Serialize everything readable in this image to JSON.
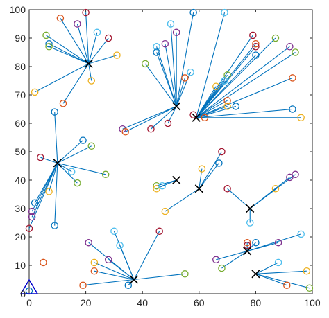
{
  "chart_data": {
    "type": "scatter",
    "title": "",
    "xlabel": "",
    "ylabel": "",
    "xlim": [
      0,
      100
    ],
    "ylim": [
      0,
      100
    ],
    "xticks": [
      0,
      20,
      40,
      60,
      80,
      100
    ],
    "yticks": [
      0,
      10,
      20,
      30,
      40,
      50,
      60,
      70,
      80,
      90,
      100
    ],
    "grid": false,
    "legend": "none",
    "colors": {
      "link": "#0072BD",
      "hub": "#000000",
      "base_station": "#0000CC",
      "node_palette": [
        "#0072BD",
        "#D95319",
        "#EDB120",
        "#7E2F8E",
        "#77AC30",
        "#4DBEEE",
        "#A2142F"
      ]
    },
    "base_station": {
      "x": 0,
      "y": 0,
      "marker": "triangle"
    },
    "clusters": [
      {
        "head": [
          21,
          81
        ],
        "members": [
          {
            "x": 11,
            "y": 97,
            "c": 1
          },
          {
            "x": 20,
            "y": 99,
            "c": 6
          },
          {
            "x": 17,
            "y": 95,
            "c": 3
          },
          {
            "x": 24,
            "y": 92,
            "c": 5
          },
          {
            "x": 28,
            "y": 90,
            "c": 6
          },
          {
            "x": 6,
            "y": 91,
            "c": 4
          },
          {
            "x": 7,
            "y": 88,
            "c": 0
          },
          {
            "x": 7,
            "y": 87,
            "c": 4
          },
          {
            "x": 31,
            "y": 84,
            "c": 2
          },
          {
            "x": 22,
            "y": 75,
            "c": 2
          },
          {
            "x": 12,
            "y": 67,
            "c": 1
          },
          {
            "x": 2,
            "y": 71,
            "c": 2
          }
        ]
      },
      {
        "head": [
          52,
          66
        ],
        "members": [
          {
            "x": 58,
            "y": 99,
            "c": 0
          },
          {
            "x": 50,
            "y": 95,
            "c": 5
          },
          {
            "x": 52,
            "y": 92,
            "c": 3
          },
          {
            "x": 48,
            "y": 88,
            "c": 3
          },
          {
            "x": 45,
            "y": 87,
            "c": 5
          },
          {
            "x": 45,
            "y": 85,
            "c": 0
          },
          {
            "x": 41,
            "y": 81,
            "c": 4
          },
          {
            "x": 57,
            "y": 78,
            "c": 5
          },
          {
            "x": 55,
            "y": 76,
            "c": 1
          },
          {
            "x": 33,
            "y": 58,
            "c": 3
          },
          {
            "x": 34,
            "y": 57,
            "c": 1
          },
          {
            "x": 43,
            "y": 58,
            "c": 6
          },
          {
            "x": 49,
            "y": 60,
            "c": 6
          }
        ]
      },
      {
        "head": [
          59,
          62
        ],
        "members": [
          {
            "x": 69,
            "y": 99,
            "c": 5
          },
          {
            "x": 79,
            "y": 91,
            "c": 6
          },
          {
            "x": 80,
            "y": 88,
            "c": 1
          },
          {
            "x": 80,
            "y": 87,
            "c": 6
          },
          {
            "x": 87,
            "y": 90,
            "c": 4
          },
          {
            "x": 92,
            "y": 87,
            "c": 3
          },
          {
            "x": 94,
            "y": 85,
            "c": 4
          },
          {
            "x": 80,
            "y": 84,
            "c": 0
          },
          {
            "x": 70,
            "y": 77,
            "c": 4
          },
          {
            "x": 69,
            "y": 75,
            "c": 5
          },
          {
            "x": 93,
            "y": 76,
            "c": 1
          },
          {
            "x": 66,
            "y": 73,
            "c": 2
          },
          {
            "x": 70,
            "y": 68,
            "c": 1
          },
          {
            "x": 70,
            "y": 66,
            "c": 2
          },
          {
            "x": 73,
            "y": 66,
            "c": 0
          },
          {
            "x": 93,
            "y": 65,
            "c": 0
          },
          {
            "x": 96,
            "y": 62,
            "c": 2
          },
          {
            "x": 62,
            "y": 62,
            "c": 1
          },
          {
            "x": 58,
            "y": 63,
            "c": 6
          }
        ]
      },
      {
        "head": [
          10,
          46
        ],
        "members": [
          {
            "x": 9,
            "y": 64,
            "c": 0
          },
          {
            "x": 19,
            "y": 54,
            "c": 0
          },
          {
            "x": 22,
            "y": 52,
            "c": 4
          },
          {
            "x": 4,
            "y": 48,
            "c": 6
          },
          {
            "x": 15,
            "y": 43,
            "c": 5
          },
          {
            "x": 27,
            "y": 42,
            "c": 4
          },
          {
            "x": 17,
            "y": 39,
            "c": 4
          },
          {
            "x": 7,
            "y": 36,
            "c": 2
          },
          {
            "x": 2,
            "y": 32,
            "c": 0
          },
          {
            "x": 1,
            "y": 29,
            "c": 3
          },
          {
            "x": 1,
            "y": 27,
            "c": 3
          },
          {
            "x": 0,
            "y": 23,
            "c": 6
          },
          {
            "x": 9,
            "y": 24,
            "c": 0
          }
        ]
      },
      {
        "head": [
          52,
          40
        ],
        "members": [
          {
            "x": 45,
            "y": 38,
            "c": 4
          },
          {
            "x": 45,
            "y": 37,
            "c": 2
          },
          {
            "x": 47,
            "y": 38,
            "c": 5
          }
        ]
      },
      {
        "head": [
          60,
          37
        ],
        "members": [
          {
            "x": 61,
            "y": 44,
            "c": 2
          },
          {
            "x": 67,
            "y": 46,
            "c": 0
          },
          {
            "x": 68,
            "y": 50,
            "c": 6
          },
          {
            "x": 48,
            "y": 29,
            "c": 2
          }
        ]
      },
      {
        "head": [
          78,
          30
        ],
        "members": [
          {
            "x": 70,
            "y": 37,
            "c": 6
          },
          {
            "x": 87,
            "y": 37,
            "c": 2
          },
          {
            "x": 92,
            "y": 41,
            "c": 3
          },
          {
            "x": 94,
            "y": 42,
            "c": 3
          },
          {
            "x": 78,
            "y": 25,
            "c": 5
          }
        ]
      },
      {
        "head": [
          37,
          5
        ],
        "members": [
          {
            "x": 30,
            "y": 22,
            "c": 5
          },
          {
            "x": 46,
            "y": 22,
            "c": 6
          },
          {
            "x": 32,
            "y": 17,
            "c": 5
          },
          {
            "x": 21,
            "y": 18,
            "c": 3
          },
          {
            "x": 28,
            "y": 12,
            "c": 3
          },
          {
            "x": 23,
            "y": 11,
            "c": 2
          },
          {
            "x": 23,
            "y": 8,
            "c": 1
          },
          {
            "x": 55,
            "y": 7,
            "c": 4
          },
          {
            "x": 19,
            "y": 3,
            "c": 1
          },
          {
            "x": 35,
            "y": 3,
            "c": 0
          }
        ]
      },
      {
        "head": [
          77,
          15
        ],
        "members": [
          {
            "x": 77,
            "y": 18,
            "c": 1
          },
          {
            "x": 80,
            "y": 18,
            "c": 0
          },
          {
            "x": 88,
            "y": 18,
            "c": 3
          },
          {
            "x": 96,
            "y": 21,
            "c": 5
          },
          {
            "x": 66,
            "y": 12,
            "c": 3
          },
          {
            "x": 68,
            "y": 9,
            "c": 4
          },
          {
            "x": 77,
            "y": 17,
            "c": 6
          }
        ]
      },
      {
        "head": [
          80,
          7
        ],
        "members": [
          {
            "x": 88,
            "y": 11,
            "c": 5
          },
          {
            "x": 98,
            "y": 8,
            "c": 2
          },
          {
            "x": 91,
            "y": 3,
            "c": 1
          },
          {
            "x": 99,
            "y": 2,
            "c": 4
          }
        ]
      }
    ],
    "isolated": [
      {
        "x": 5,
        "y": 11,
        "c": 1
      },
      {
        "x": 0,
        "y": 1,
        "c": 0
      }
    ]
  }
}
